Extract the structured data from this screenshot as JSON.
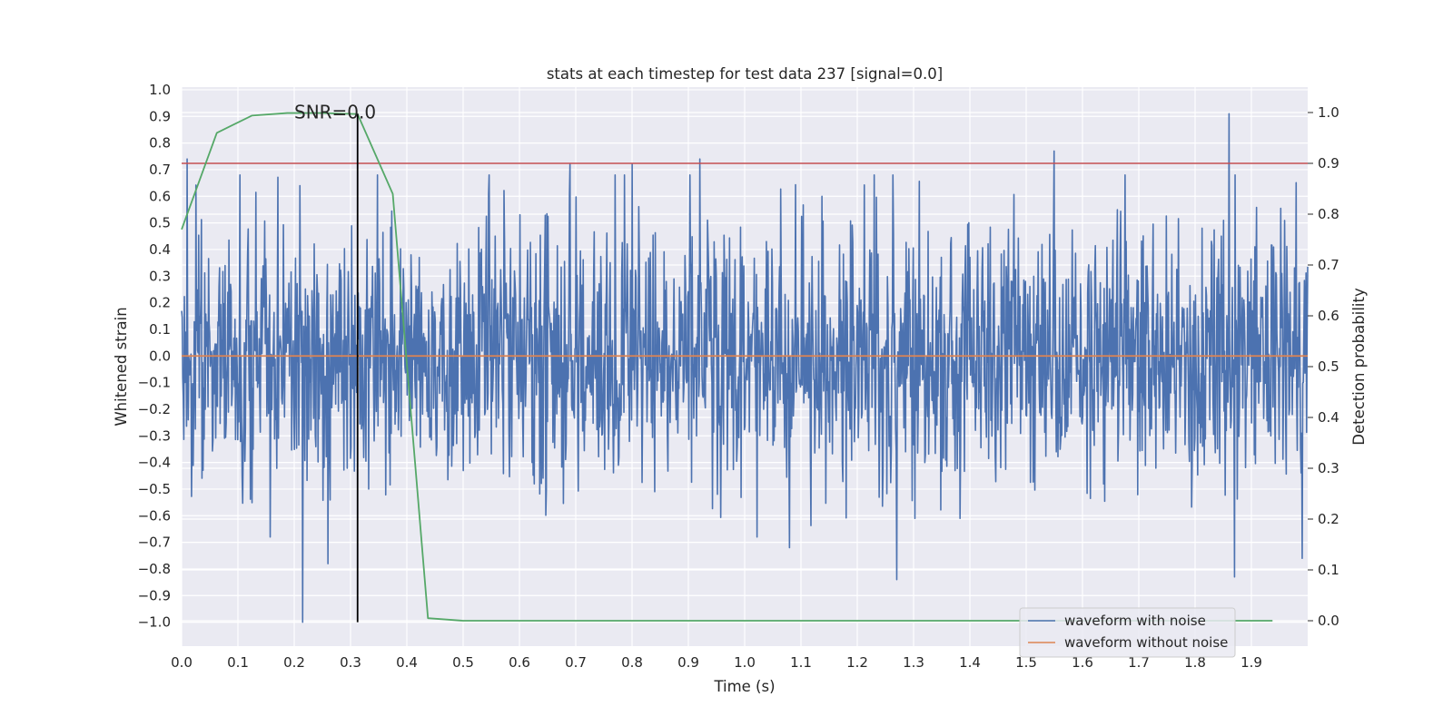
{
  "chart_data": {
    "type": "line",
    "title": "stats at each timestep for test data 237 [signal=0.0]",
    "xlabel": "Time (s)",
    "ylabel": "Whitened strain",
    "y2label": "Detection probability",
    "xlim": [
      0.0,
      2.0
    ],
    "ylim": [
      -1.09,
      1.01
    ],
    "y2lim": [
      -0.05,
      1.05
    ],
    "x_ticks": [
      "0.0",
      "0.1",
      "0.2",
      "0.3",
      "0.4",
      "0.5",
      "0.6",
      "0.7",
      "0.8",
      "0.9",
      "1.0",
      "1.1",
      "1.2",
      "1.3",
      "1.4",
      "1.5",
      "1.6",
      "1.7",
      "1.8",
      "1.9"
    ],
    "y_ticks": [
      "1.0",
      "0.9",
      "0.8",
      "0.7",
      "0.6",
      "0.5",
      "0.4",
      "0.3",
      "0.2",
      "0.1",
      "0.0",
      "−0.1",
      "−0.2",
      "−0.3",
      "−0.4",
      "−0.5",
      "−0.6",
      "−0.7",
      "−0.8",
      "−0.9",
      "−1.0"
    ],
    "y2_ticks": [
      "1.0",
      "0.9",
      "0.8",
      "0.7",
      "0.6",
      "0.5",
      "0.4",
      "0.3",
      "0.2",
      "0.1",
      "0.0"
    ],
    "grid": true,
    "legend_position": "bottom-right",
    "annotation": {
      "text": "SNR=0.0",
      "x": 0.2,
      "y": 0.9
    },
    "vline": {
      "x": 0.3125,
      "ymin": -1.0,
      "ymax": 0.91,
      "color": "#000000"
    },
    "threshold_line": {
      "axis": "right",
      "y": 0.9,
      "color": "#c44e52"
    },
    "series": [
      {
        "name": "waveform with noise",
        "color": "#4c72b0",
        "axis": "left",
        "noise_amplitude_std": 0.25,
        "x_range": [
          0.0,
          2.0
        ],
        "samples": 2048,
        "peaks": [
          [
            0.01,
            0.74
          ],
          [
            0.21,
            0.64
          ],
          [
            0.69,
            0.72
          ],
          [
            0.8,
            0.72
          ],
          [
            0.92,
            0.74
          ],
          [
            1.55,
            0.77
          ],
          [
            1.86,
            0.91
          ],
          [
            0.215,
            -1.0
          ],
          [
            0.26,
            -0.78
          ],
          [
            1.08,
            -0.72
          ],
          [
            1.27,
            -0.84
          ],
          [
            1.87,
            -0.83
          ],
          [
            1.99,
            -0.76
          ]
        ]
      },
      {
        "name": "waveform without noise",
        "color": "#dd8452",
        "axis": "left",
        "x": [
          0.0,
          2.0
        ],
        "y": [
          0.0,
          0.0
        ]
      },
      {
        "color": "#55a868",
        "axis": "right",
        "x": [
          0.0,
          0.0625,
          0.125,
          0.1875,
          0.25,
          0.3125,
          0.375,
          0.4375,
          0.5,
          0.5625,
          0.625,
          0.6875,
          0.75,
          0.8125,
          0.875,
          0.9375,
          1.0,
          1.0625,
          1.125,
          1.1875,
          1.25,
          1.3125,
          1.375,
          1.4375,
          1.5,
          1.5625,
          1.625,
          1.6875,
          1.75,
          1.8125,
          1.875,
          1.9375
        ],
        "y": [
          0.77,
          0.96,
          0.994,
          0.999,
          0.999,
          0.997,
          0.84,
          0.005,
          0.0,
          0.0,
          0.0,
          0.0,
          0.0,
          0.0,
          0.0,
          0.0,
          0.0,
          0.0,
          0.0,
          0.0,
          0.0,
          0.0,
          0.0,
          0.0,
          0.0,
          0.0,
          0.0,
          0.0,
          0.0,
          0.0,
          0.0,
          0.0
        ]
      }
    ]
  }
}
